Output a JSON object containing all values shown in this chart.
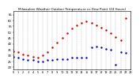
{
  "title": "Milwaukee Weather Outdoor Temperature vs Dew Point (24 Hours)",
  "title_fontsize": 3.0,
  "background_color": "#ffffff",
  "temp_color": "#cc0000",
  "dew_color": "#0000cc",
  "black_color": "#000000",
  "grid_color": "#999999",
  "xlim": [
    0,
    24
  ],
  "ylim": [
    18,
    68
  ],
  "yticks": [
    20,
    25,
    30,
    35,
    40,
    45,
    50,
    55,
    60,
    65
  ],
  "ytick_labels": [
    "20",
    "25",
    "30",
    "35",
    "40",
    "45",
    "50",
    "55",
    "60",
    "65"
  ],
  "xticks": [
    0,
    1,
    2,
    3,
    4,
    5,
    6,
    7,
    8,
    9,
    10,
    11,
    12,
    13,
    14,
    15,
    16,
    17,
    18,
    19,
    20,
    21,
    22,
    23,
    24
  ],
  "xtick_labels": [
    "0",
    "1",
    "2",
    "3",
    "4",
    "5",
    "6",
    "7",
    "8",
    "9",
    "10",
    "11",
    "12",
    "13",
    "14",
    "15",
    "16",
    "17",
    "18",
    "19",
    "20",
    "21",
    "22",
    "23",
    "24"
  ],
  "temp_x": [
    0,
    1,
    2,
    3,
    4,
    5,
    6,
    7,
    8,
    9,
    10,
    11,
    12,
    13,
    14,
    15,
    16,
    17,
    18,
    19,
    20,
    21,
    22,
    23
  ],
  "temp_y": [
    34,
    33,
    31,
    30,
    29,
    28,
    30,
    33,
    37,
    41,
    45,
    49,
    53,
    56,
    58,
    59,
    58,
    56,
    54,
    52,
    49,
    46,
    43,
    62
  ],
  "dew_x": [
    0,
    1,
    2,
    3,
    4,
    5,
    6,
    7,
    8,
    9,
    10,
    11,
    12,
    13,
    14,
    15,
    16,
    17,
    18,
    19,
    20,
    21,
    22,
    23
  ],
  "dew_y": [
    29,
    28,
    27,
    26,
    26,
    25,
    25,
    26,
    26,
    27,
    27,
    27,
    28,
    28,
    28,
    28,
    37,
    38,
    37,
    36,
    35,
    22,
    33,
    32
  ],
  "marker_size": 1.5,
  "xticklabel_fontsize": 2.5,
  "yticklabel_fontsize": 2.8
}
